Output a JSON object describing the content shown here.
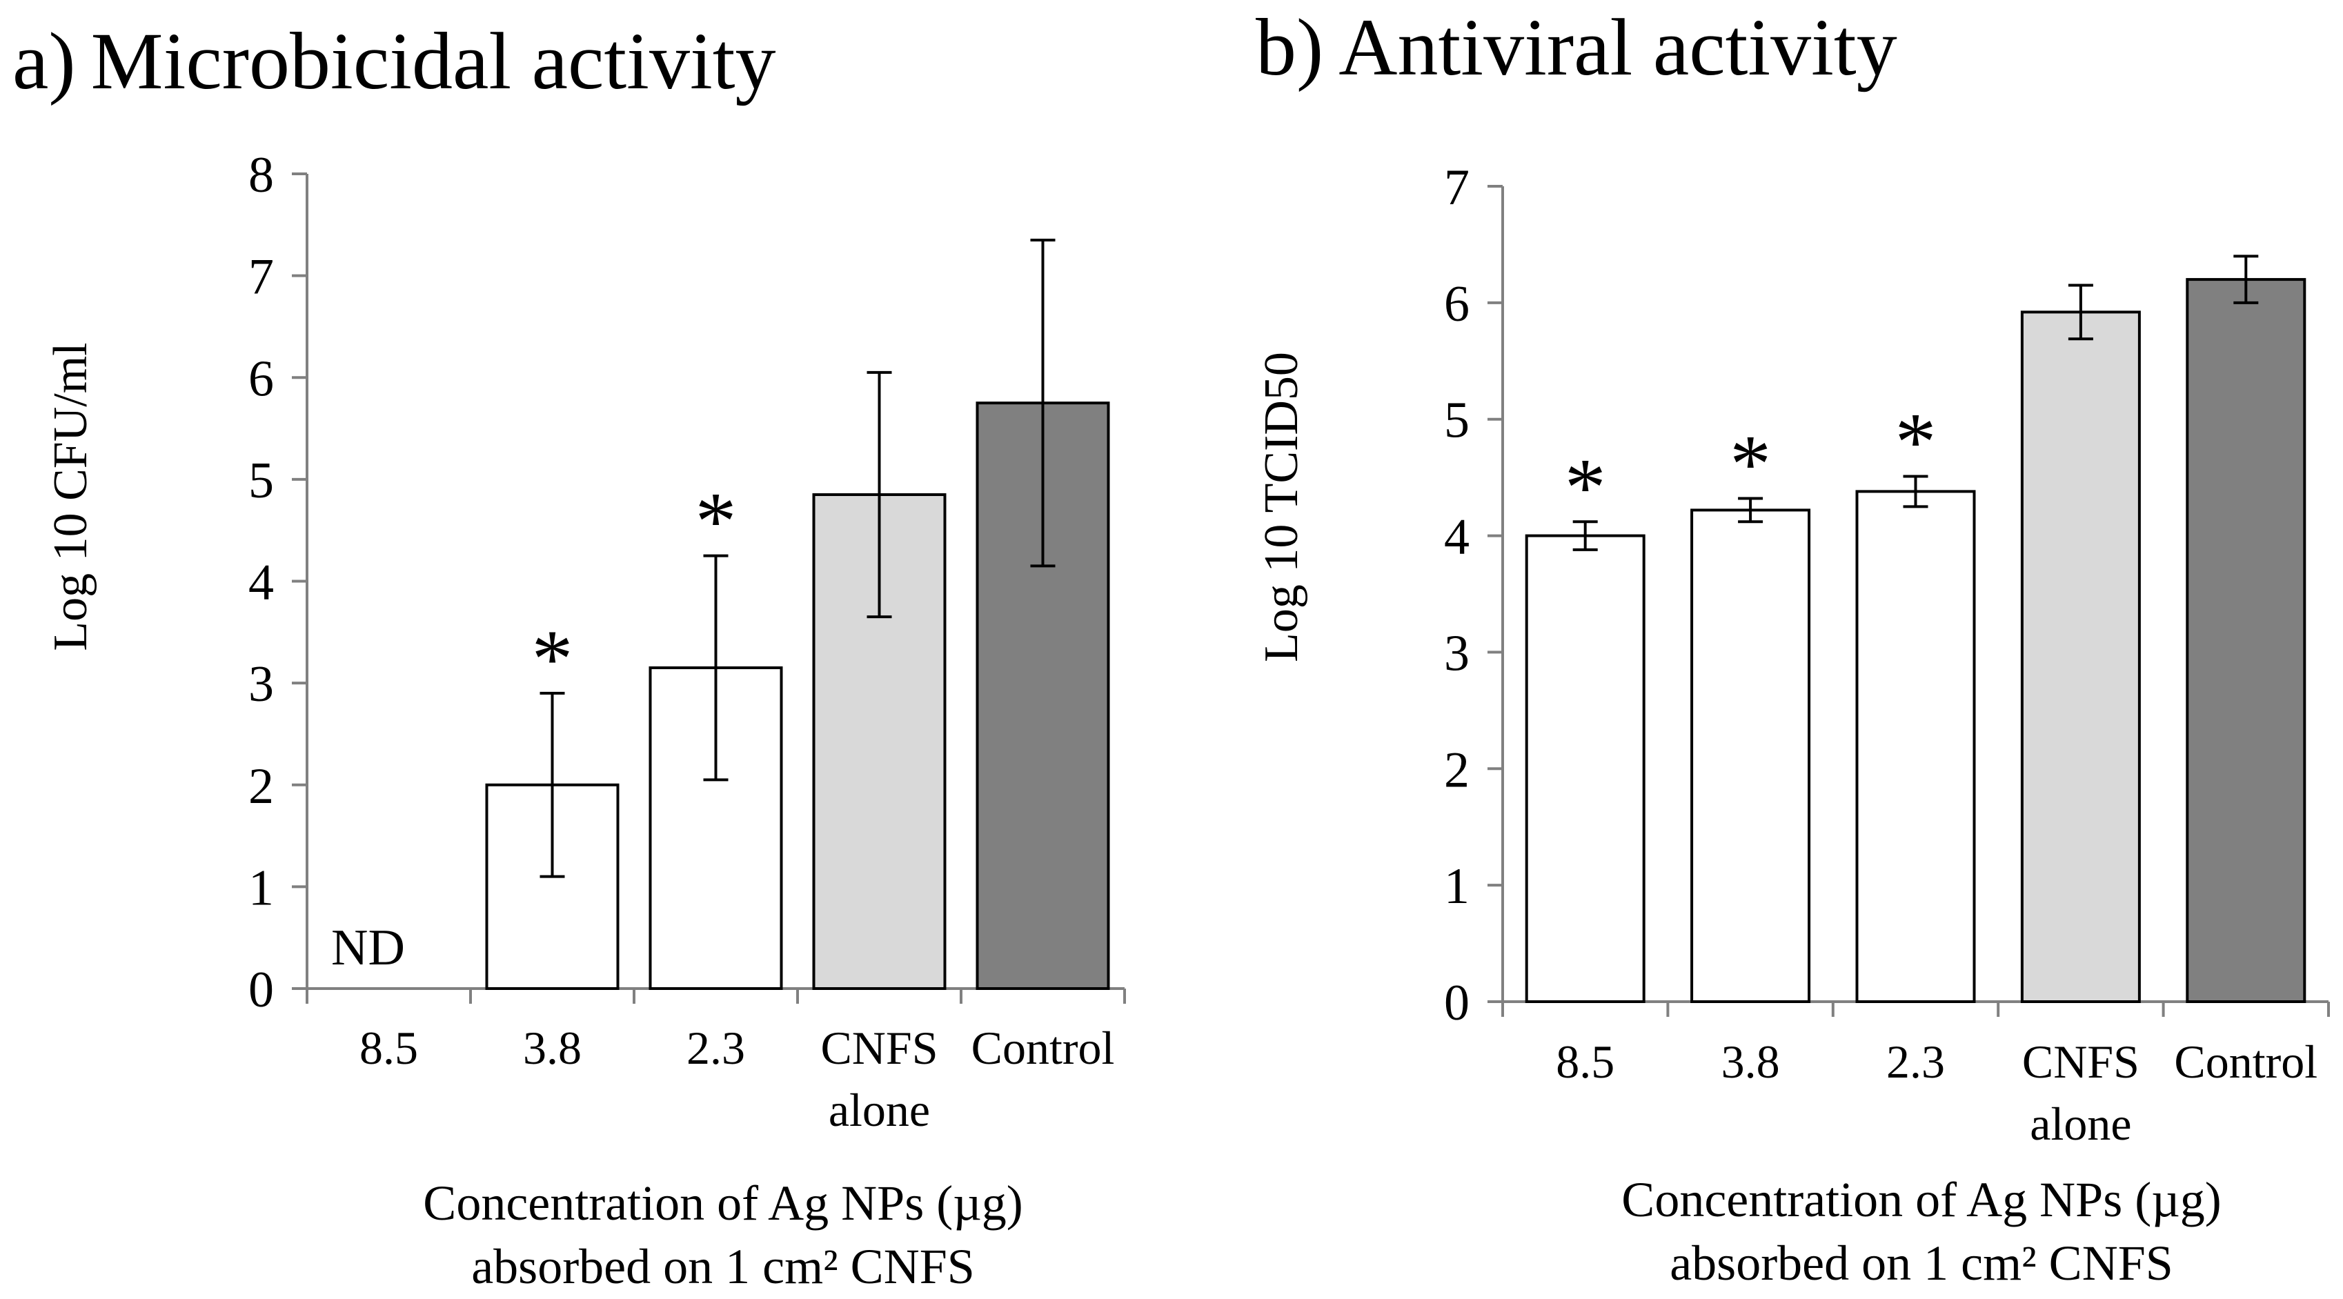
{
  "chart_data": [
    {
      "type": "bar",
      "panel_label": "a)",
      "title": "Microbicidal activity",
      "categories": [
        "8.5",
        "3.8",
        "2.3",
        "CNFS alone",
        "Control"
      ],
      "values": [
        null,
        2.0,
        3.15,
        4.85,
        5.75
      ],
      "error": [
        null,
        0.9,
        1.1,
        1.2,
        1.6
      ],
      "bar_colors": [
        "#ffffff",
        "#ffffff",
        "#ffffff",
        "#d9d9d9",
        "#808080"
      ],
      "significance": [
        "",
        "*",
        "*",
        "",
        ""
      ],
      "value_notes": [
        "ND",
        "",
        "",
        "",
        ""
      ],
      "ylabel": "Log 10 CFU/ml",
      "xlabel_lines": [
        "Concentration of Ag NPs (µg)",
        "absorbed on 1 cm² CNFS"
      ],
      "ylim": [
        0,
        8
      ],
      "yticks": [
        0,
        1,
        2,
        3,
        4,
        5,
        6,
        7,
        8
      ],
      "grid": false
    },
    {
      "type": "bar",
      "panel_label": "b)",
      "title": "Antiviral activity",
      "categories": [
        "8.5",
        "3.8",
        "2.3",
        "CNFS alone",
        "Control"
      ],
      "values": [
        4.0,
        4.22,
        4.38,
        5.92,
        6.2
      ],
      "error": [
        0.12,
        0.1,
        0.13,
        0.23,
        0.2
      ],
      "bar_colors": [
        "#ffffff",
        "#ffffff",
        "#ffffff",
        "#d9d9d9",
        "#808080"
      ],
      "significance": [
        "*",
        "*",
        "*",
        "",
        ""
      ],
      "value_notes": [
        "",
        "",
        "",
        "",
        ""
      ],
      "ylabel": "Log 10 TCID50",
      "xlabel_lines": [
        "Concentration of Ag NPs (µg)",
        "absorbed on 1 cm² CNFS"
      ],
      "ylim": [
        0,
        7
      ],
      "yticks": [
        0,
        1,
        2,
        3,
        4,
        5,
        6,
        7
      ],
      "grid": false
    }
  ]
}
